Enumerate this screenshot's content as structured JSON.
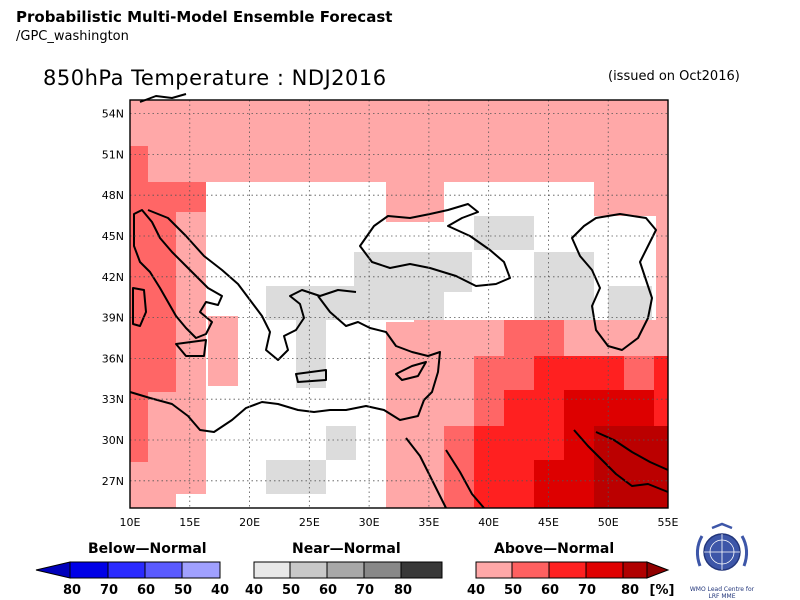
{
  "header": {
    "title": "Probabilistic Multi-Model Ensemble Forecast",
    "source": "/GPC_washington"
  },
  "map": {
    "title": "850hPa Temperature : NDJ2016",
    "issued": "(issued on Oct2016)",
    "lon_range": [
      10,
      55
    ],
    "lat_range": [
      25,
      55
    ],
    "lon_ticks": [
      "10E",
      "15E",
      "20E",
      "25E",
      "30E",
      "35E",
      "40E",
      "45E",
      "50E",
      "55E"
    ],
    "lat_ticks": [
      "27N",
      "30N",
      "33N",
      "36N",
      "39N",
      "42N",
      "45N",
      "48N",
      "51N",
      "54N"
    ]
  },
  "legend": {
    "below_label": "Below—Normal",
    "near_label": "Near—Normal",
    "above_label": "Above—Normal",
    "below_ticks": [
      "80",
      "70",
      "60",
      "50",
      "40"
    ],
    "near_ticks": [
      "40",
      "50",
      "60",
      "70",
      "80"
    ],
    "above_ticks": [
      "40",
      "50",
      "60",
      "70",
      "80"
    ],
    "unit": "[%]",
    "below_colors": [
      "#0000bb",
      "#0000e6",
      "#2a2aff",
      "#5a5aff",
      "#a0a0ff"
    ],
    "near_colors": [
      "#e8e8e8",
      "#c8c8c8",
      "#a8a8a8",
      "#888888",
      "#585858",
      "#303030"
    ],
    "above_colors": [
      "#ffa8a8",
      "#ff6060",
      "#ff2020",
      "#e00000",
      "#b00000",
      "#900000"
    ]
  },
  "logo": {
    "line1": "WMO Lead Centre for",
    "line2": "LRF MME"
  },
  "colors": {
    "above_40": "#ffa8a8",
    "above_50": "#ff6666",
    "above_60": "#ff2020",
    "above_70": "#dd0000",
    "above_80": "#bb0000",
    "near_40": "#dcdcdc",
    "no_signal": "#ffffff",
    "grid": "#555555"
  }
}
